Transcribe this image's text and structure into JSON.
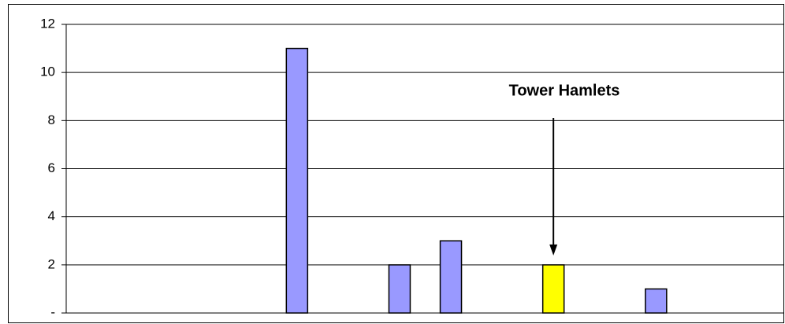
{
  "chart_data": {
    "type": "bar",
    "annotation": "Tower Hamlets",
    "categories": [
      null,
      null,
      null,
      null,
      null,
      null,
      null,
      null,
      null,
      null,
      null,
      null,
      null,
      null
    ],
    "values": [
      null,
      null,
      null,
      null,
      11,
      null,
      2,
      3,
      null,
      2,
      null,
      1,
      null,
      null
    ],
    "colors": [
      null,
      null,
      null,
      null,
      "#9999ff",
      null,
      "#9999ff",
      "#9999ff",
      null,
      "#ffff00",
      null,
      "#9999ff",
      null,
      null
    ],
    "ylim": [
      0,
      12
    ],
    "yticks": [
      {
        "value": 0,
        "label": "-"
      },
      2,
      4,
      6,
      8,
      10,
      12
    ],
    "grid": true
  }
}
